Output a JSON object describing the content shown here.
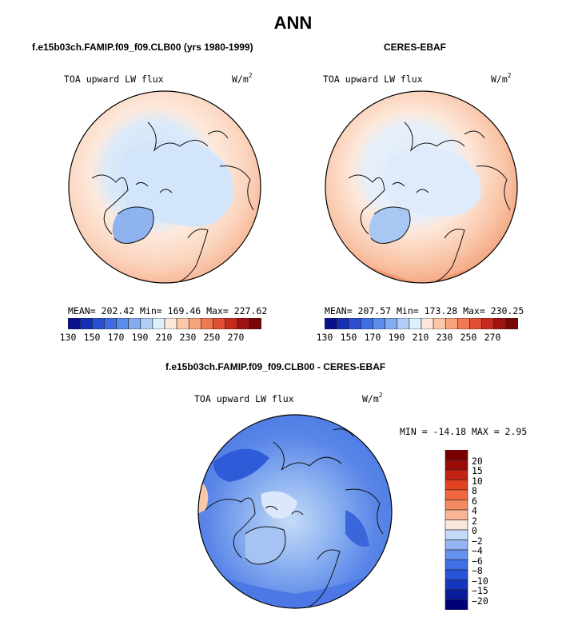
{
  "page_title": "ANN",
  "colors": {
    "abs_scale": [
      "#08108a",
      "#1630b4",
      "#2a4fd3",
      "#3f6ee4",
      "#5b8ded",
      "#82adf2",
      "#b2d0f7",
      "#ddeefc",
      "#fde7d8",
      "#fbc9aa",
      "#f7a47e",
      "#f07954",
      "#e24f32",
      "#c52a1e",
      "#a01210",
      "#7a0606"
    ],
    "diff_scale": [
      "#00007a",
      "#0a1c9c",
      "#1636bd",
      "#2653d8",
      "#3f70e6",
      "#6590ee",
      "#93b3f2",
      "#c4d8f8",
      "#fbe8dc",
      "#f9b495",
      "#f58a62",
      "#f0673d",
      "#e24320",
      "#c32212",
      "#9c0a08",
      "#7a0000"
    ]
  },
  "panels": [
    {
      "id": "model",
      "subtitle": "f.e15b03ch.FAMIP.f09_f09.CLB00 (yrs 1980-1999)",
      "variable_label": "TOA upward LW flux",
      "units": "W/m",
      "units_exp": "2",
      "stats_text": "MEAN= 202.42  Min= 169.46  Max= 227.62",
      "stats": {
        "mean": 202.42,
        "min": 169.46,
        "max": 227.62
      },
      "colorbar_ticks": [
        "130",
        "150",
        "170",
        "190",
        "210",
        "230",
        "250",
        "270"
      ]
    },
    {
      "id": "obs",
      "subtitle": "CERES-EBAF",
      "variable_label": "TOA upward LW flux",
      "units": "W/m",
      "units_exp": "2",
      "stats_text": "MEAN= 207.57  Min= 173.28  Max= 230.25",
      "stats": {
        "mean": 207.57,
        "min": 173.28,
        "max": 230.25
      },
      "colorbar_ticks": [
        "130",
        "150",
        "170",
        "190",
        "210",
        "230",
        "250",
        "270"
      ]
    }
  ],
  "difference": {
    "subtitle": "f.e15b03ch.FAMIP.f09_f09.CLB00 - CERES-EBAF",
    "variable_label": "TOA upward LW flux",
    "units": "W/m",
    "units_exp": "2",
    "minmax_text": "MIN = -14.18 MAX =   2.95",
    "stats": {
      "min": -14.18,
      "max": 2.95
    },
    "colorbar_labels": [
      "20",
      "15",
      "10",
      "8",
      "6",
      "4",
      "2",
      "0",
      "−2",
      "−4",
      "−6",
      "−8",
      "−10",
      "−15",
      "−20"
    ]
  }
}
